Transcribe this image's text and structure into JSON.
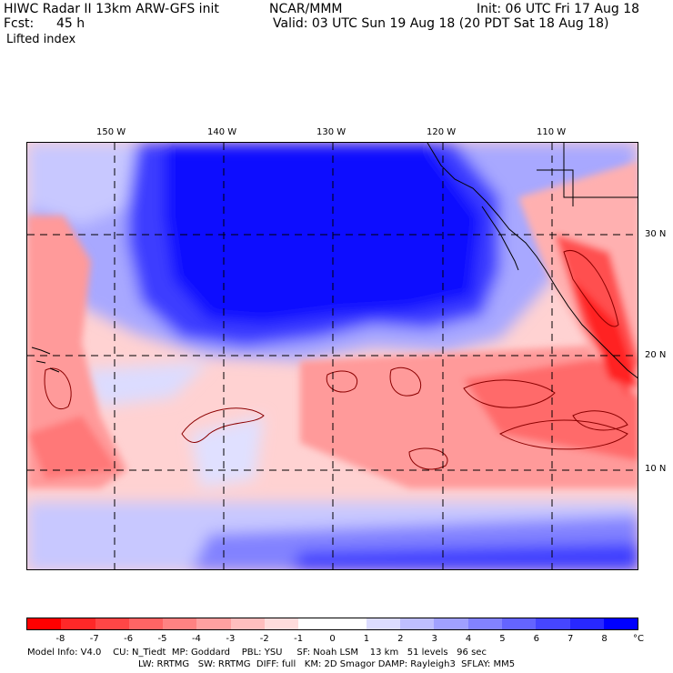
{
  "header": {
    "title_left": "HIWC Radar II 13km ARW-GFS init",
    "center": "NCAR/MMM",
    "init": "Init: 06 UTC Fri 17 Aug 18",
    "fcst_label": "Fcst:",
    "fcst_value": "45 h",
    "valid": "Valid: 03 UTC Sun 19 Aug 18 (20 PDT Sat 18 Aug 18)",
    "field": "Lifted index"
  },
  "map": {
    "lon_labels": [
      "150 W",
      "140 W",
      "130 W",
      "120 W",
      "110 W"
    ],
    "lat_labels": [
      "30 N",
      "20 N",
      "10 N"
    ]
  },
  "colorbar": {
    "ticks": [
      "-8",
      "-7",
      "-6",
      "-5",
      "-4",
      "-3",
      "-2",
      "-1",
      "0",
      "1",
      "2",
      "3",
      "4",
      "5",
      "6",
      "7",
      "8"
    ],
    "unit": "°C",
    "colors": [
      "#ff0000",
      "#ff2828",
      "#ff4646",
      "#ff6464",
      "#ff8282",
      "#ffa0a0",
      "#ffbebe",
      "#ffdcdc",
      "#ffffff",
      "#ffffff",
      "#dcdcff",
      "#bebeff",
      "#a0a0ff",
      "#8282ff",
      "#6464ff",
      "#4646ff",
      "#2828ff",
      "#0000ff"
    ]
  },
  "footer": {
    "line1": "Model Info: V4.0    CU: N_Tiedt  MP: Goddard    PBL: YSU     SF: Noah LSM    13 km   51 levels   96 sec",
    "line2": "LW: RRTMG   SW: RRTMG  DIFF: full   KM: 2D Smagor DAMP: Rayleigh3  SFLAY: MM5"
  }
}
